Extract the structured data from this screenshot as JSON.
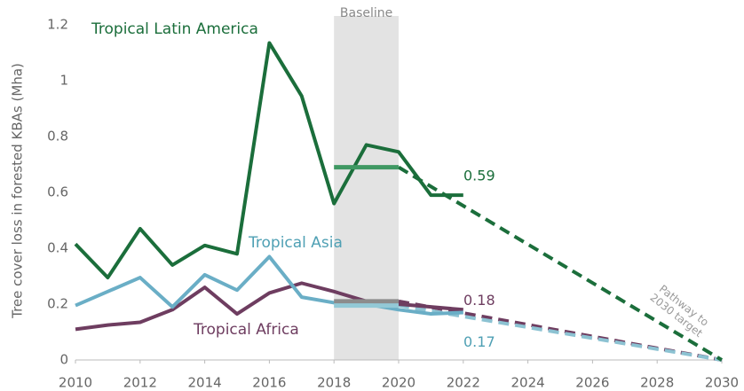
{
  "chart_data": {
    "type": "line",
    "y_label": "Tree cover loss in forested KBAs (Mha)",
    "x": [
      2010,
      2011,
      2012,
      2013,
      2014,
      2015,
      2016,
      2017,
      2018,
      2019,
      2020,
      2021,
      2022
    ],
    "xlim": [
      2010,
      2030
    ],
    "xticks": [
      2010,
      2012,
      2014,
      2016,
      2018,
      2020,
      2022,
      2024,
      2026,
      2028,
      2030
    ],
    "ylim": [
      0,
      1.2
    ],
    "yticks": [
      0,
      0.2,
      0.4,
      0.6,
      0.8,
      1,
      1.2
    ],
    "shaded_band": {
      "label": "Baseline",
      "x": [
        2018,
        2020
      ],
      "color": "#e3e3e3"
    },
    "series": [
      {
        "name": "Tropical Latin America",
        "color": "#1b6e3b",
        "values": [
          0.415,
          0.295,
          0.47,
          0.34,
          0.41,
          0.38,
          1.135,
          0.945,
          0.56,
          0.77,
          0.745,
          0.59,
          0.59
        ],
        "value_labels": [
          null,
          null,
          null,
          null,
          null,
          null,
          null,
          null,
          null,
          null,
          null,
          null,
          "0.59"
        ],
        "baseline": {
          "color": "#3f9863",
          "x": [
            2018,
            2020
          ],
          "values": [
            0.69,
            0.69
          ]
        },
        "pathway": {
          "color": "#1b6e3b",
          "x": [
            2020,
            2030
          ],
          "values": [
            0.69,
            0
          ]
        }
      },
      {
        "name": "Tropical Asia",
        "color": "#6aaec6",
        "values": [
          0.195,
          0.245,
          0.295,
          0.19,
          0.305,
          0.25,
          0.37,
          0.225,
          0.205,
          0.2,
          0.18,
          0.165,
          0.17
        ],
        "value_labels": [
          null,
          null,
          null,
          null,
          null,
          null,
          null,
          null,
          null,
          null,
          null,
          null,
          "0.17"
        ],
        "baseline": {
          "color": "#93c9d6",
          "x": [
            2018,
            2020
          ],
          "values": [
            0.195,
            0.195
          ]
        },
        "pathway": {
          "color": "#8cc2d2",
          "x": [
            2020,
            2030
          ],
          "values": [
            0.195,
            0
          ]
        }
      },
      {
        "name": "Tropical Africa",
        "color": "#6e3d60",
        "values": [
          0.11,
          0.125,
          0.135,
          0.18,
          0.26,
          0.165,
          0.24,
          0.275,
          0.245,
          0.21,
          0.2,
          0.19,
          0.18
        ],
        "value_labels": [
          null,
          null,
          null,
          null,
          null,
          null,
          null,
          null,
          null,
          null,
          null,
          null,
          "0.18"
        ],
        "baseline": {
          "color": "#8c8c8c",
          "x": [
            2018,
            2020
          ],
          "values": [
            0.21,
            0.21
          ]
        },
        "pathway": {
          "color": "#6e3d60",
          "x": [
            2020,
            2030
          ],
          "values": [
            0.21,
            0
          ]
        }
      }
    ],
    "annotation": [
      "Pathway to",
      "2030 target"
    ]
  }
}
